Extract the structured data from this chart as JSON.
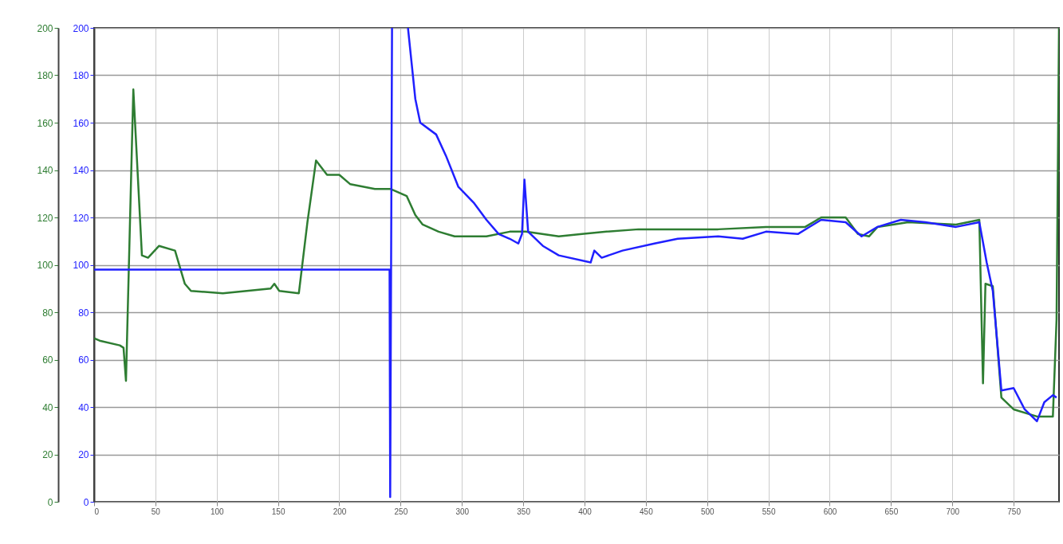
{
  "chart_data": {
    "type": "line",
    "xlim": [
      0,
      787
    ],
    "xticks": [
      0,
      50,
      100,
      150,
      200,
      250,
      300,
      350,
      400,
      450,
      500,
      550,
      600,
      650,
      700,
      750
    ],
    "ylim": [
      0,
      200
    ],
    "yticks": [
      0,
      20,
      40,
      60,
      80,
      100,
      120,
      140,
      160,
      180,
      200
    ],
    "y2lim": [
      0,
      200
    ],
    "y2ticks": [
      0,
      20,
      40,
      60,
      80,
      100,
      120,
      140,
      160,
      180,
      200
    ],
    "grid": true,
    "marker": "none",
    "line_style": "solid",
    "series": [
      {
        "color": "#2e7d32",
        "axis": "y",
        "x": [
          0,
          4.5,
          21,
          24,
          26,
          32,
          39,
          44,
          53,
          66,
          74,
          79,
          105,
          144,
          147,
          151,
          167,
          174,
          181,
          190,
          200,
          209,
          229,
          242,
          255,
          262,
          268,
          281,
          294,
          320,
          339,
          352,
          379,
          398,
          418,
          444,
          509,
          548,
          580,
          593,
          613,
          623,
          632,
          639,
          664,
          703,
          722,
          725,
          727,
          733,
          740,
          750,
          769,
          782,
          785,
          787
        ],
        "values": [
          69,
          68,
          66,
          65,
          51,
          174,
          104,
          103,
          108,
          106,
          92,
          89,
          88,
          90,
          92,
          89,
          88,
          118,
          144,
          138,
          138,
          134,
          132,
          132,
          129,
          121,
          117,
          114,
          112,
          112,
          114,
          114,
          112,
          113,
          114,
          115,
          115,
          116,
          116,
          120,
          120,
          113,
          112,
          116,
          118,
          117,
          119,
          50,
          92,
          91,
          44,
          39,
          36,
          36,
          77,
          200
        ]
      },
      {
        "color": "#2020ff",
        "axis": "y2",
        "x": [
          0,
          241,
          241.5,
          243,
          243.5,
          256,
          262,
          266,
          279,
          287,
          297,
          310,
          320,
          330,
          339,
          346,
          349,
          351,
          354,
          366,
          379,
          405,
          408,
          414,
          431,
          457,
          476,
          509,
          529,
          548,
          574,
          593,
          613,
          626,
          639,
          658,
          678,
          703,
          722,
          728,
          733,
          740,
          750,
          759,
          769,
          775,
          782,
          785
        ],
        "values": [
          98,
          98,
          2,
          200,
          null,
          200,
          170,
          160,
          155,
          146,
          133,
          126,
          119,
          113,
          111,
          109,
          113,
          136,
          114,
          108,
          104,
          101,
          106,
          103,
          106,
          109,
          111,
          112,
          111,
          114,
          113,
          119,
          118,
          112,
          116,
          119,
          118,
          116,
          118,
          101,
          89,
          47,
          48,
          39,
          34,
          42,
          45,
          44
        ]
      }
    ]
  }
}
